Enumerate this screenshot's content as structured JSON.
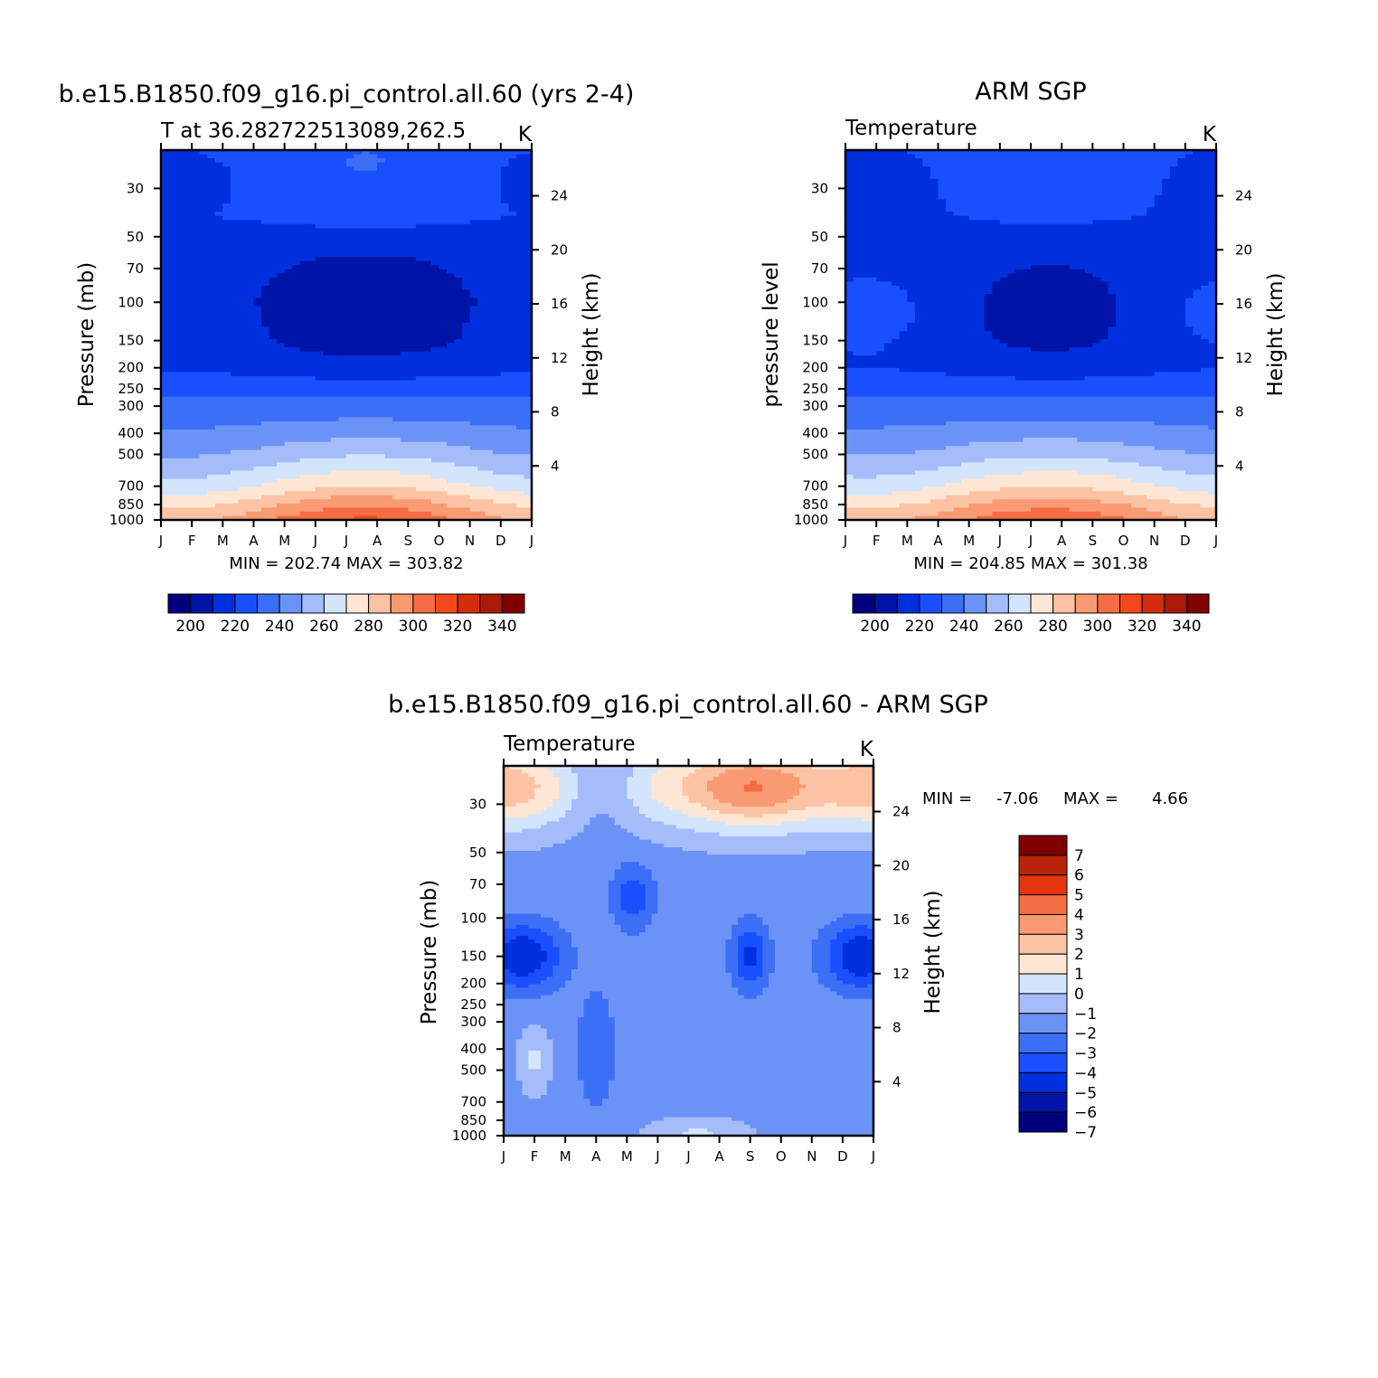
{
  "palette": {
    "temperature": [
      "#00007f",
      "#0015a8",
      "#0030dd",
      "#1a4fff",
      "#3b6ff6",
      "#6b93f7",
      "#a5bcfb",
      "#d3e4fd",
      "#fde6d3",
      "#fcc2a4",
      "#f99a72",
      "#f56d42",
      "#f2491c",
      "#d52c0b",
      "#aa1a08",
      "#800000"
    ],
    "difference": [
      "#00007f",
      "#0015a8",
      "#0030dd",
      "#1a4fff",
      "#3b6ff6",
      "#6b93f7",
      "#a5bcfb",
      "#d3e4fd",
      "#fde6d3",
      "#fcc2a4",
      "#f99a72",
      "#f56d42",
      "#e63410",
      "#b8240a",
      "#800000"
    ]
  },
  "chart_data": [
    {
      "type": "heatmap",
      "title": "b.e15.B1850.f09_g16.pi_control.all.60 (yrs 2-4)",
      "left_string": "T at 36.282722513089,262.5",
      "right_string": "K",
      "ylabel": "Pressure (mb)",
      "y2label": "Height (km)",
      "x": [
        "J",
        "F",
        "M",
        "A",
        "M",
        "J",
        "J",
        "A",
        "S",
        "O",
        "N",
        "D",
        "J"
      ],
      "y_ticks": [
        "30",
        "50",
        "70",
        "100",
        "150",
        "200",
        "250",
        "300",
        "400",
        "500",
        "700",
        "850",
        "1000"
      ],
      "y2_ticks": [
        "24",
        "20",
        "16",
        "12",
        "8",
        "4"
      ],
      "ylim": [
        1000,
        20
      ],
      "stats": "MIN = 202.74 MAX = 303.82",
      "colorbar": {
        "levels": [
          190,
          200,
          210,
          220,
          230,
          240,
          250,
          260,
          270,
          280,
          290,
          300,
          310,
          320,
          330,
          340,
          350
        ],
        "labels": [
          "200",
          "220",
          "240",
          "260",
          "280",
          "300",
          "320",
          "340"
        ]
      },
      "profiles": [
        {
          "p": 20,
          "v": 225
        },
        {
          "p": 40,
          "v": 222
        },
        {
          "p": 60,
          "v": 212
        },
        {
          "p": 100,
          "v": 208
        },
        {
          "p": 150,
          "v": 210
        },
        {
          "p": 200,
          "v": 216
        },
        {
          "p": 250,
          "v": 226
        },
        {
          "p": 300,
          "v": 234
        },
        {
          "p": 400,
          "v": 244
        },
        {
          "p": 500,
          "v": 254
        },
        {
          "p": 700,
          "v": 272
        },
        {
          "p": 850,
          "v": 288
        },
        {
          "p": 1000,
          "v": 300
        }
      ]
    },
    {
      "type": "heatmap",
      "title": "ARM SGP",
      "left_string": "Temperature",
      "right_string": "K",
      "ylabel": "pressure level",
      "y2label": "Height (km)",
      "x": [
        "J",
        "F",
        "M",
        "A",
        "M",
        "J",
        "J",
        "A",
        "S",
        "O",
        "N",
        "D",
        "J"
      ],
      "y_ticks": [
        "30",
        "50",
        "70",
        "100",
        "150",
        "200",
        "250",
        "300",
        "400",
        "500",
        "700",
        "850",
        "1000"
      ],
      "y2_ticks": [
        "24",
        "20",
        "16",
        "12",
        "8",
        "4"
      ],
      "ylim": [
        1000,
        20
      ],
      "stats": "MIN = 204.85 MAX = 301.38",
      "colorbar": {
        "levels": [
          190,
          200,
          210,
          220,
          230,
          240,
          250,
          260,
          270,
          280,
          290,
          300,
          310,
          320,
          330,
          340,
          350
        ],
        "labels": [
          "200",
          "220",
          "240",
          "260",
          "280",
          "300",
          "320",
          "340"
        ]
      },
      "profiles": [
        {
          "p": 20,
          "v": 224
        },
        {
          "p": 40,
          "v": 220
        },
        {
          "p": 60,
          "v": 214
        },
        {
          "p": 100,
          "v": 214
        },
        {
          "p": 150,
          "v": 214
        },
        {
          "p": 200,
          "v": 217
        },
        {
          "p": 250,
          "v": 226
        },
        {
          "p": 300,
          "v": 234
        },
        {
          "p": 400,
          "v": 244
        },
        {
          "p": 500,
          "v": 254
        },
        {
          "p": 700,
          "v": 272
        },
        {
          "p": 850,
          "v": 287
        },
        {
          "p": 1000,
          "v": 298
        }
      ]
    },
    {
      "type": "heatmap",
      "title": "b.e15.B1850.f09_g16.pi_control.all.60 - ARM SGP",
      "left_string": "Temperature",
      "right_string": "K",
      "ylabel": "Pressure (mb)",
      "y2label": "Height (km)",
      "x": [
        "J",
        "F",
        "M",
        "A",
        "M",
        "J",
        "J",
        "A",
        "S",
        "O",
        "N",
        "D",
        "J"
      ],
      "y_ticks": [
        "30",
        "50",
        "70",
        "100",
        "150",
        "200",
        "250",
        "300",
        "400",
        "500",
        "700",
        "850",
        "1000"
      ],
      "y2_ticks": [
        "24",
        "20",
        "16",
        "12",
        "8",
        "4"
      ],
      "ylim": [
        1000,
        20
      ],
      "stats_label": "MIN =",
      "stats_min": "-7.06",
      "stats_max_label": "MAX =",
      "stats_max": "4.66",
      "colorbar": {
        "levels": [
          -8,
          -7,
          -6,
          -5,
          -4,
          -3,
          -2,
          -1,
          0,
          1,
          2,
          3,
          4,
          5,
          6,
          7,
          8
        ],
        "labels": [
          "7",
          "6",
          "5",
          "4",
          "3",
          "2",
          "1",
          "0",
          "-1",
          "-2",
          "-3",
          "-4",
          "-5",
          "-6",
          "-7"
        ]
      }
    }
  ]
}
